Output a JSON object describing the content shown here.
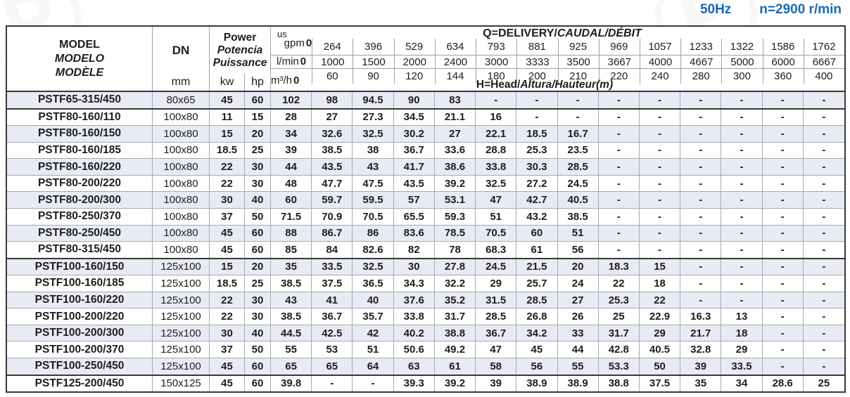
{
  "page": {
    "frequency_label": "50Hz",
    "speed_label": "n=2900 r/min"
  },
  "colors": {
    "accent_blue": "#1a6ab4",
    "stripe": "#e9ebf4",
    "grid_line": "#a3a9b3",
    "heavy_line": "#383838"
  },
  "table": {
    "header": {
      "model_en": "MODEL",
      "model_es": "MODELO",
      "model_fr": "MODÈLE",
      "dn_label": "DN",
      "dn_unit": "mm",
      "power_en": "Power",
      "power_es": "Potencia",
      "power_fr": "Puissance",
      "power_unit_kw": "kw",
      "power_unit_hp": "hp",
      "q_title_plain": "Q=DELIVERY/",
      "q_title_italic": "CAUDAL/DÉBIT",
      "h_title_plain": "H=Head/",
      "h_title_italic": "Altura/Hauteur(m)",
      "flow_rows": [
        {
          "label_top": "us",
          "label": "gpm",
          "zero": "0",
          "values": [
            "264",
            "396",
            "529",
            "634",
            "793",
            "881",
            "925",
            "969",
            "1057",
            "1233",
            "1322",
            "1586",
            "1762"
          ]
        },
        {
          "label": "l/min",
          "zero": "0",
          "values": [
            "1000",
            "1500",
            "2000",
            "2400",
            "3000",
            "3333",
            "3500",
            "3667",
            "4000",
            "4667",
            "5000",
            "6000",
            "6667"
          ]
        },
        {
          "label": "m³/h",
          "zero": "0",
          "values": [
            "60",
            "90",
            "120",
            "144",
            "180",
            "200",
            "210",
            "220",
            "240",
            "280",
            "300",
            "360",
            "400"
          ]
        }
      ]
    },
    "rows": [
      {
        "model": "PSTF65-315/450",
        "dn": "80x65",
        "kw": "45",
        "hp": "60",
        "group_end": true,
        "heads": [
          "102",
          "98",
          "94.5",
          "90",
          "83",
          "-",
          "-",
          "-",
          "-",
          "-",
          "-",
          "-",
          "-",
          "-"
        ]
      },
      {
        "model": "PSTF80-160/110",
        "dn": "100x80",
        "kw": "11",
        "hp": "15",
        "heads": [
          "28",
          "27",
          "27.3",
          "34.5",
          "21.1",
          "16",
          "-",
          "-",
          "-",
          "-",
          "-",
          "-",
          "-",
          "-"
        ]
      },
      {
        "model": "PSTF80-160/150",
        "dn": "100x80",
        "kw": "15",
        "hp": "20",
        "heads": [
          "34",
          "32.6",
          "32.5",
          "30.2",
          "27",
          "22.1",
          "18.5",
          "16.7",
          "-",
          "-",
          "-",
          "-",
          "-",
          "-"
        ]
      },
      {
        "model": "PSTF80-160/185",
        "dn": "100x80",
        "kw": "18.5",
        "hp": "25",
        "heads": [
          "39",
          "38.5",
          "38",
          "36.7",
          "33.6",
          "28.8",
          "25.3",
          "23.5",
          "-",
          "-",
          "-",
          "-",
          "-",
          "-"
        ]
      },
      {
        "model": "PSTF80-160/220",
        "dn": "100x80",
        "kw": "22",
        "hp": "30",
        "heads": [
          "44",
          "43.5",
          "43",
          "41.7",
          "38.6",
          "33.8",
          "30.3",
          "28.5",
          "-",
          "-",
          "-",
          "-",
          "-",
          "-"
        ]
      },
      {
        "model": "PSTF80-200/220",
        "dn": "100x80",
        "kw": "22",
        "hp": "30",
        "heads": [
          "48",
          "47.7",
          "47.5",
          "43.5",
          "39.2",
          "32.5",
          "27.2",
          "24.5",
          "-",
          "-",
          "-",
          "-",
          "-",
          "-"
        ]
      },
      {
        "model": "PSTF80-200/300",
        "dn": "100x80",
        "kw": "30",
        "hp": "40",
        "heads": [
          "60",
          "59.7",
          "59.5",
          "57",
          "53.1",
          "47",
          "42.7",
          "40.5",
          "-",
          "-",
          "-",
          "-",
          "-",
          "-"
        ]
      },
      {
        "model": "PSTF80-250/370",
        "dn": "100x80",
        "kw": "37",
        "hp": "50",
        "heads": [
          "71.5",
          "70.9",
          "70.5",
          "65.5",
          "59.3",
          "51",
          "43.2",
          "38.5",
          "-",
          "-",
          "-",
          "-",
          "-",
          "-"
        ]
      },
      {
        "model": "PSTF80-250/450",
        "dn": "100x80",
        "kw": "45",
        "hp": "60",
        "heads": [
          "88",
          "86.7",
          "86",
          "83.6",
          "78.5",
          "70.5",
          "60",
          "51",
          "-",
          "-",
          "-",
          "-",
          "-",
          "-"
        ]
      },
      {
        "model": "PSTF80-315/450",
        "dn": "100x80",
        "kw": "45",
        "hp": "60",
        "group_end": true,
        "heads": [
          "85",
          "84",
          "82.6",
          "82",
          "78",
          "68.3",
          "61",
          "56",
          "-",
          "-",
          "-",
          "-",
          "-",
          "-"
        ]
      },
      {
        "model": "PSTF100-160/150",
        "dn": "125x100",
        "kw": "15",
        "hp": "20",
        "heads": [
          "35",
          "33.5",
          "32.5",
          "30",
          "27.8",
          "24.5",
          "21.5",
          "20",
          "18.3",
          "15",
          "-",
          "-",
          "-",
          "-"
        ]
      },
      {
        "model": "PSTF100-160/185",
        "dn": "125x100",
        "kw": "18.5",
        "hp": "25",
        "heads": [
          "38.5",
          "37.5",
          "36.5",
          "34.3",
          "32.2",
          "29",
          "25.7",
          "24",
          "22",
          "18",
          "-",
          "-",
          "-",
          "-"
        ]
      },
      {
        "model": "PSTF100-160/220",
        "dn": "125x100",
        "kw": "22",
        "hp": "30",
        "heads": [
          "43",
          "41",
          "40",
          "37.6",
          "35.2",
          "31.5",
          "28.5",
          "27",
          "25.3",
          "22",
          "-",
          "-",
          "-",
          "-"
        ]
      },
      {
        "model": "PSTF100-200/220",
        "dn": "125x100",
        "kw": "22",
        "hp": "30",
        "heads": [
          "38.5",
          "36.7",
          "35.7",
          "33.8",
          "31.7",
          "28.5",
          "26.8",
          "26",
          "25",
          "22.9",
          "16.3",
          "13",
          "-",
          "-"
        ]
      },
      {
        "model": "PSTF100-200/300",
        "dn": "125x100",
        "kw": "30",
        "hp": "40",
        "heads": [
          "44.5",
          "42.5",
          "42",
          "40.2",
          "38.8",
          "36.7",
          "34.2",
          "33",
          "31.7",
          "29",
          "21.7",
          "18",
          "-",
          "-"
        ]
      },
      {
        "model": "PSTF100-200/370",
        "dn": "125x100",
        "kw": "37",
        "hp": "50",
        "heads": [
          "55",
          "53",
          "51",
          "50.6",
          "49.2",
          "47",
          "45",
          "44",
          "42.8",
          "40.5",
          "32.8",
          "29",
          "-",
          "-"
        ]
      },
      {
        "model": "PSTF100-250/450",
        "dn": "125x100",
        "kw": "45",
        "hp": "60",
        "group_end": true,
        "heads": [
          "65",
          "65",
          "64",
          "63",
          "61",
          "58",
          "56",
          "55",
          "53.3",
          "50",
          "39",
          "33.5",
          "-",
          "-"
        ]
      },
      {
        "model": "PSTF125-200/450",
        "dn": "150x125",
        "kw": "45",
        "hp": "60",
        "heads": [
          "39.8",
          "-",
          "-",
          "39.3",
          "39.2",
          "39",
          "38.9",
          "38.9",
          "38.8",
          "37.5",
          "35",
          "34",
          "28.6",
          "25"
        ]
      }
    ]
  }
}
